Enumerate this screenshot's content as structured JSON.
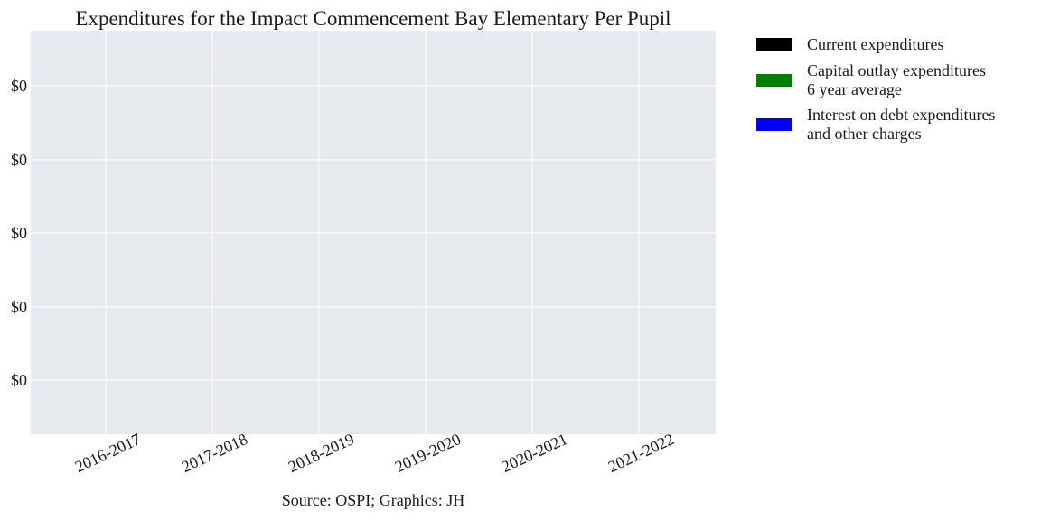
{
  "chart_data": {
    "type": "bar",
    "title": "Expenditures for the Impact Commencement Bay Elementary Per Pupil",
    "xlabel": "",
    "ylabel": "",
    "categories": [
      "2016-2017",
      "2017-2018",
      "2018-2019",
      "2019-2020",
      "2020-2021",
      "2021-2022"
    ],
    "series": [
      {
        "name": "Current expenditures",
        "color": "#000000",
        "values": [
          0,
          0,
          0,
          0,
          0,
          0
        ]
      },
      {
        "name": "Capital outlay expenditures\n6 year average",
        "color": "#008000",
        "values": [
          0,
          0,
          0,
          0,
          0,
          0
        ]
      },
      {
        "name": "Interest on debt expenditures\nand other charges",
        "color": "#0000ff",
        "values": [
          0,
          0,
          0,
          0,
          0,
          0
        ]
      }
    ],
    "yticks": [
      "$0",
      "$0",
      "$0",
      "$0",
      "$0"
    ],
    "grid": true,
    "legend_position": "outside-right",
    "background_color": "#e8e8f0",
    "source": "Source: OSPI; Graphics: JH"
  }
}
